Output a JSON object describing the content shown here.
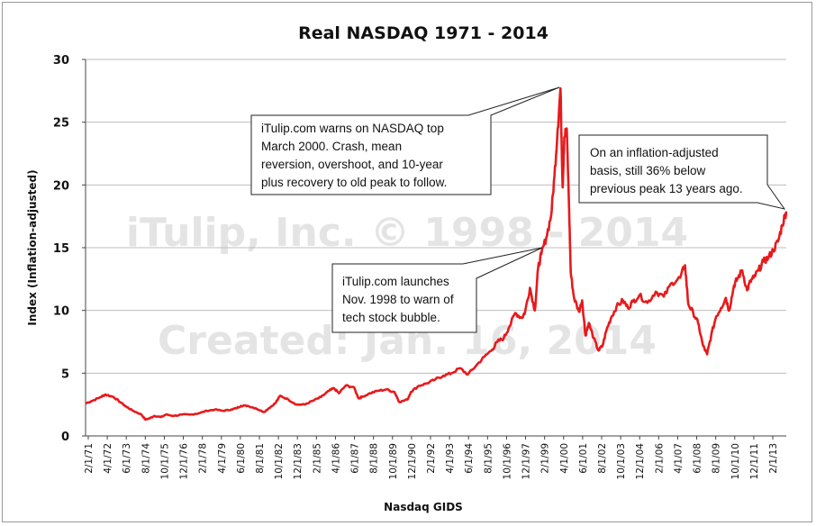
{
  "chart_data": {
    "type": "line",
    "title": "Real NASDAQ 1971 - 2014",
    "xlabel": "Nasdaq GIDS",
    "ylabel": "Index (Inflation-adjusted)",
    "ylim": [
      0,
      30
    ],
    "yticks": [
      "0",
      "5",
      "10",
      "15",
      "20",
      "25",
      "30"
    ],
    "xlim": [
      1971.08,
      2014.0
    ],
    "grid": "horizontal",
    "line_color": "#e8191b",
    "x_tick_labels": [
      "2/1/71",
      "4/1/72",
      "6/1/73",
      "8/1/74",
      "10/1/75",
      "12/1/76",
      "2/1/78",
      "4/1/79",
      "6/1/80",
      "8/1/81",
      "10/1/82",
      "12/1/83",
      "2/1/85",
      "4/1/86",
      "6/1/87",
      "8/1/88",
      "10/1/89",
      "12/1/90",
      "2/1/92",
      "4/1/93",
      "6/1/94",
      "8/1/95",
      "10/1/96",
      "12/1/97",
      "2/1/99",
      "4/1/00",
      "6/1/01",
      "8/1/02",
      "10/1/03",
      "12/1/04",
      "2/1/06",
      "4/1/07",
      "6/1/08",
      "8/1/09",
      "10/1/10",
      "12/1/11",
      "2/1/13"
    ],
    "series": [
      {
        "x": [
          1971.08,
          1971.5,
          1972.0,
          1972.3,
          1972.8,
          1973.2,
          1973.6,
          1974.0,
          1974.5,
          1974.75,
          1975.0,
          1975.3,
          1975.7,
          1976.0,
          1976.5,
          1977.0,
          1977.5,
          1978.0,
          1978.5,
          1979.0,
          1979.5,
          1980.0,
          1980.3,
          1980.6,
          1981.0,
          1981.5,
          1982.0,
          1982.3,
          1982.7,
          1983.0,
          1983.5,
          1984.0,
          1984.5,
          1985.0,
          1985.5,
          1986.0,
          1986.3,
          1986.6,
          1987.0,
          1987.5,
          1987.8,
          1988.0,
          1988.5,
          1989.0,
          1989.5,
          1990.0,
          1990.3,
          1990.8,
          1991.0,
          1991.5,
          1992.0,
          1992.5,
          1993.0,
          1993.5,
          1994.0,
          1994.5,
          1995.0,
          1995.5,
          1996.0,
          1996.3,
          1996.7,
          1997.0,
          1997.4,
          1997.8,
          1998.0,
          1998.3,
          1998.6,
          1998.8,
          1999.0,
          1999.3,
          1999.6,
          1999.8,
          2000.0,
          2000.17,
          2000.3,
          2000.4,
          2000.55,
          2000.7,
          2000.8,
          2001.0,
          2001.3,
          2001.5,
          2001.7,
          2001.9,
          2002.2,
          2002.5,
          2002.75,
          2003.0,
          2003.3,
          2003.6,
          2004.0,
          2004.3,
          2004.6,
          2005.0,
          2005.5,
          2006.0,
          2006.5,
          2007.0,
          2007.5,
          2007.8,
          2008.0,
          2008.3,
          2008.6,
          2008.9,
          2009.15,
          2009.4,
          2009.7,
          2010.0,
          2010.3,
          2010.5,
          2010.8,
          2011.0,
          2011.3,
          2011.6,
          2011.8,
          2012.0,
          2012.3,
          2012.6,
          2012.9,
          2013.2,
          2013.5,
          2013.75,
          2014.0
        ],
        "y": [
          2.6,
          2.8,
          3.1,
          3.3,
          3.1,
          2.7,
          2.3,
          2.0,
          1.7,
          1.3,
          1.4,
          1.6,
          1.5,
          1.7,
          1.6,
          1.7,
          1.7,
          1.8,
          2.0,
          2.1,
          2.0,
          2.1,
          2.2,
          2.4,
          2.4,
          2.2,
          1.9,
          2.2,
          2.6,
          3.2,
          2.9,
          2.5,
          2.5,
          2.8,
          3.1,
          3.6,
          3.8,
          3.4,
          4.0,
          3.9,
          3.0,
          3.1,
          3.4,
          3.6,
          3.7,
          3.5,
          2.7,
          2.9,
          3.5,
          4.0,
          4.2,
          4.5,
          4.8,
          5.0,
          5.4,
          4.9,
          5.6,
          6.3,
          6.9,
          7.5,
          7.8,
          8.6,
          9.8,
          9.4,
          9.9,
          11.8,
          10.0,
          13.4,
          14.5,
          15.8,
          17.6,
          20.7,
          24.5,
          27.7,
          19.8,
          23.8,
          24.5,
          18.0,
          13.0,
          11.0,
          9.9,
          10.8,
          8.0,
          9.0,
          7.8,
          6.8,
          7.2,
          8.5,
          9.5,
          10.3,
          10.8,
          10.2,
          10.7,
          11.2,
          10.6,
          11.5,
          11.1,
          12.2,
          12.6,
          13.6,
          10.5,
          9.8,
          9.0,
          7.2,
          6.5,
          8.0,
          9.5,
          10.2,
          11.0,
          10.0,
          12.0,
          12.5,
          13.2,
          11.6,
          12.3,
          12.6,
          13.2,
          13.9,
          14.2,
          14.8,
          15.5,
          16.8,
          17.9
        ]
      }
    ],
    "annotations": [
      {
        "lines": [
          "iTulip.com warns on NASDAQ top",
          "March 2000. Crash, mean",
          "reversion, overshoot, and 10-year",
          "plus recovery to old peak to follow."
        ]
      },
      {
        "lines": [
          "On an inflation-adjusted",
          "basis, still 36% below",
          "previous peak 13 years ago."
        ]
      },
      {
        "lines": [
          "iTulip.com launches",
          "Nov. 1998 to warn of",
          "tech stock bubble."
        ]
      }
    ],
    "watermark": [
      "iTulip, Inc. © 1998 - 2014",
      "Created: Jan. 16, 2014"
    ]
  }
}
